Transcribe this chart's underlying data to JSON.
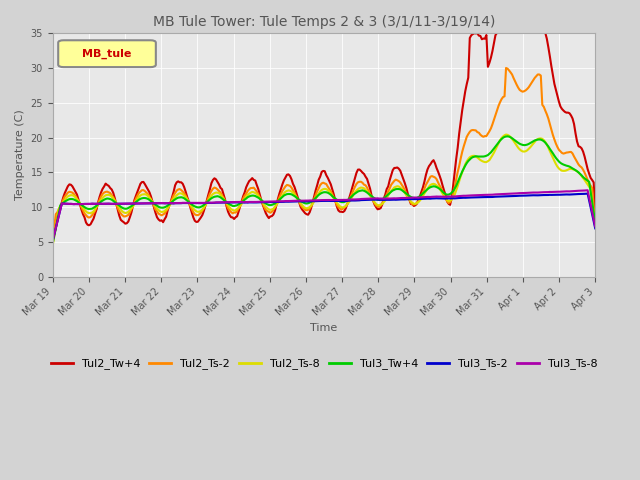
{
  "title": "MB Tule Tower: Tule Temps 2 & 3 (3/1/11-3/19/14)",
  "xlabel": "Time",
  "ylabel": "Temperature (C)",
  "ylim": [
    0,
    35
  ],
  "yticks": [
    0,
    5,
    10,
    15,
    20,
    25,
    30,
    35
  ],
  "legend_label": "MB_tule",
  "series": {
    "Tul2_Tw+4": {
      "color": "#cc0000",
      "lw": 1.5
    },
    "Tul2_Ts-2": {
      "color": "#ff8800",
      "lw": 1.5
    },
    "Tul2_Ts-8": {
      "color": "#dddd00",
      "lw": 1.5
    },
    "Tul3_Tw+4": {
      "color": "#00cc00",
      "lw": 1.5
    },
    "Tul3_Ts-2": {
      "color": "#0000cc",
      "lw": 1.5
    },
    "Tul3_Ts-8": {
      "color": "#aa00aa",
      "lw": 1.5
    }
  },
  "xtick_labels": [
    "Mar 19",
    "Mar 20",
    "Mar 21",
    "Mar 22",
    "Mar 23",
    "Mar 24",
    "Mar 25",
    "Mar 26",
    "Mar 27",
    "Mar 28",
    "Mar 29",
    "Mar 30",
    "Mar 31",
    "Apr 1",
    "Apr 2",
    "Apr 3"
  ],
  "n_days": 15
}
